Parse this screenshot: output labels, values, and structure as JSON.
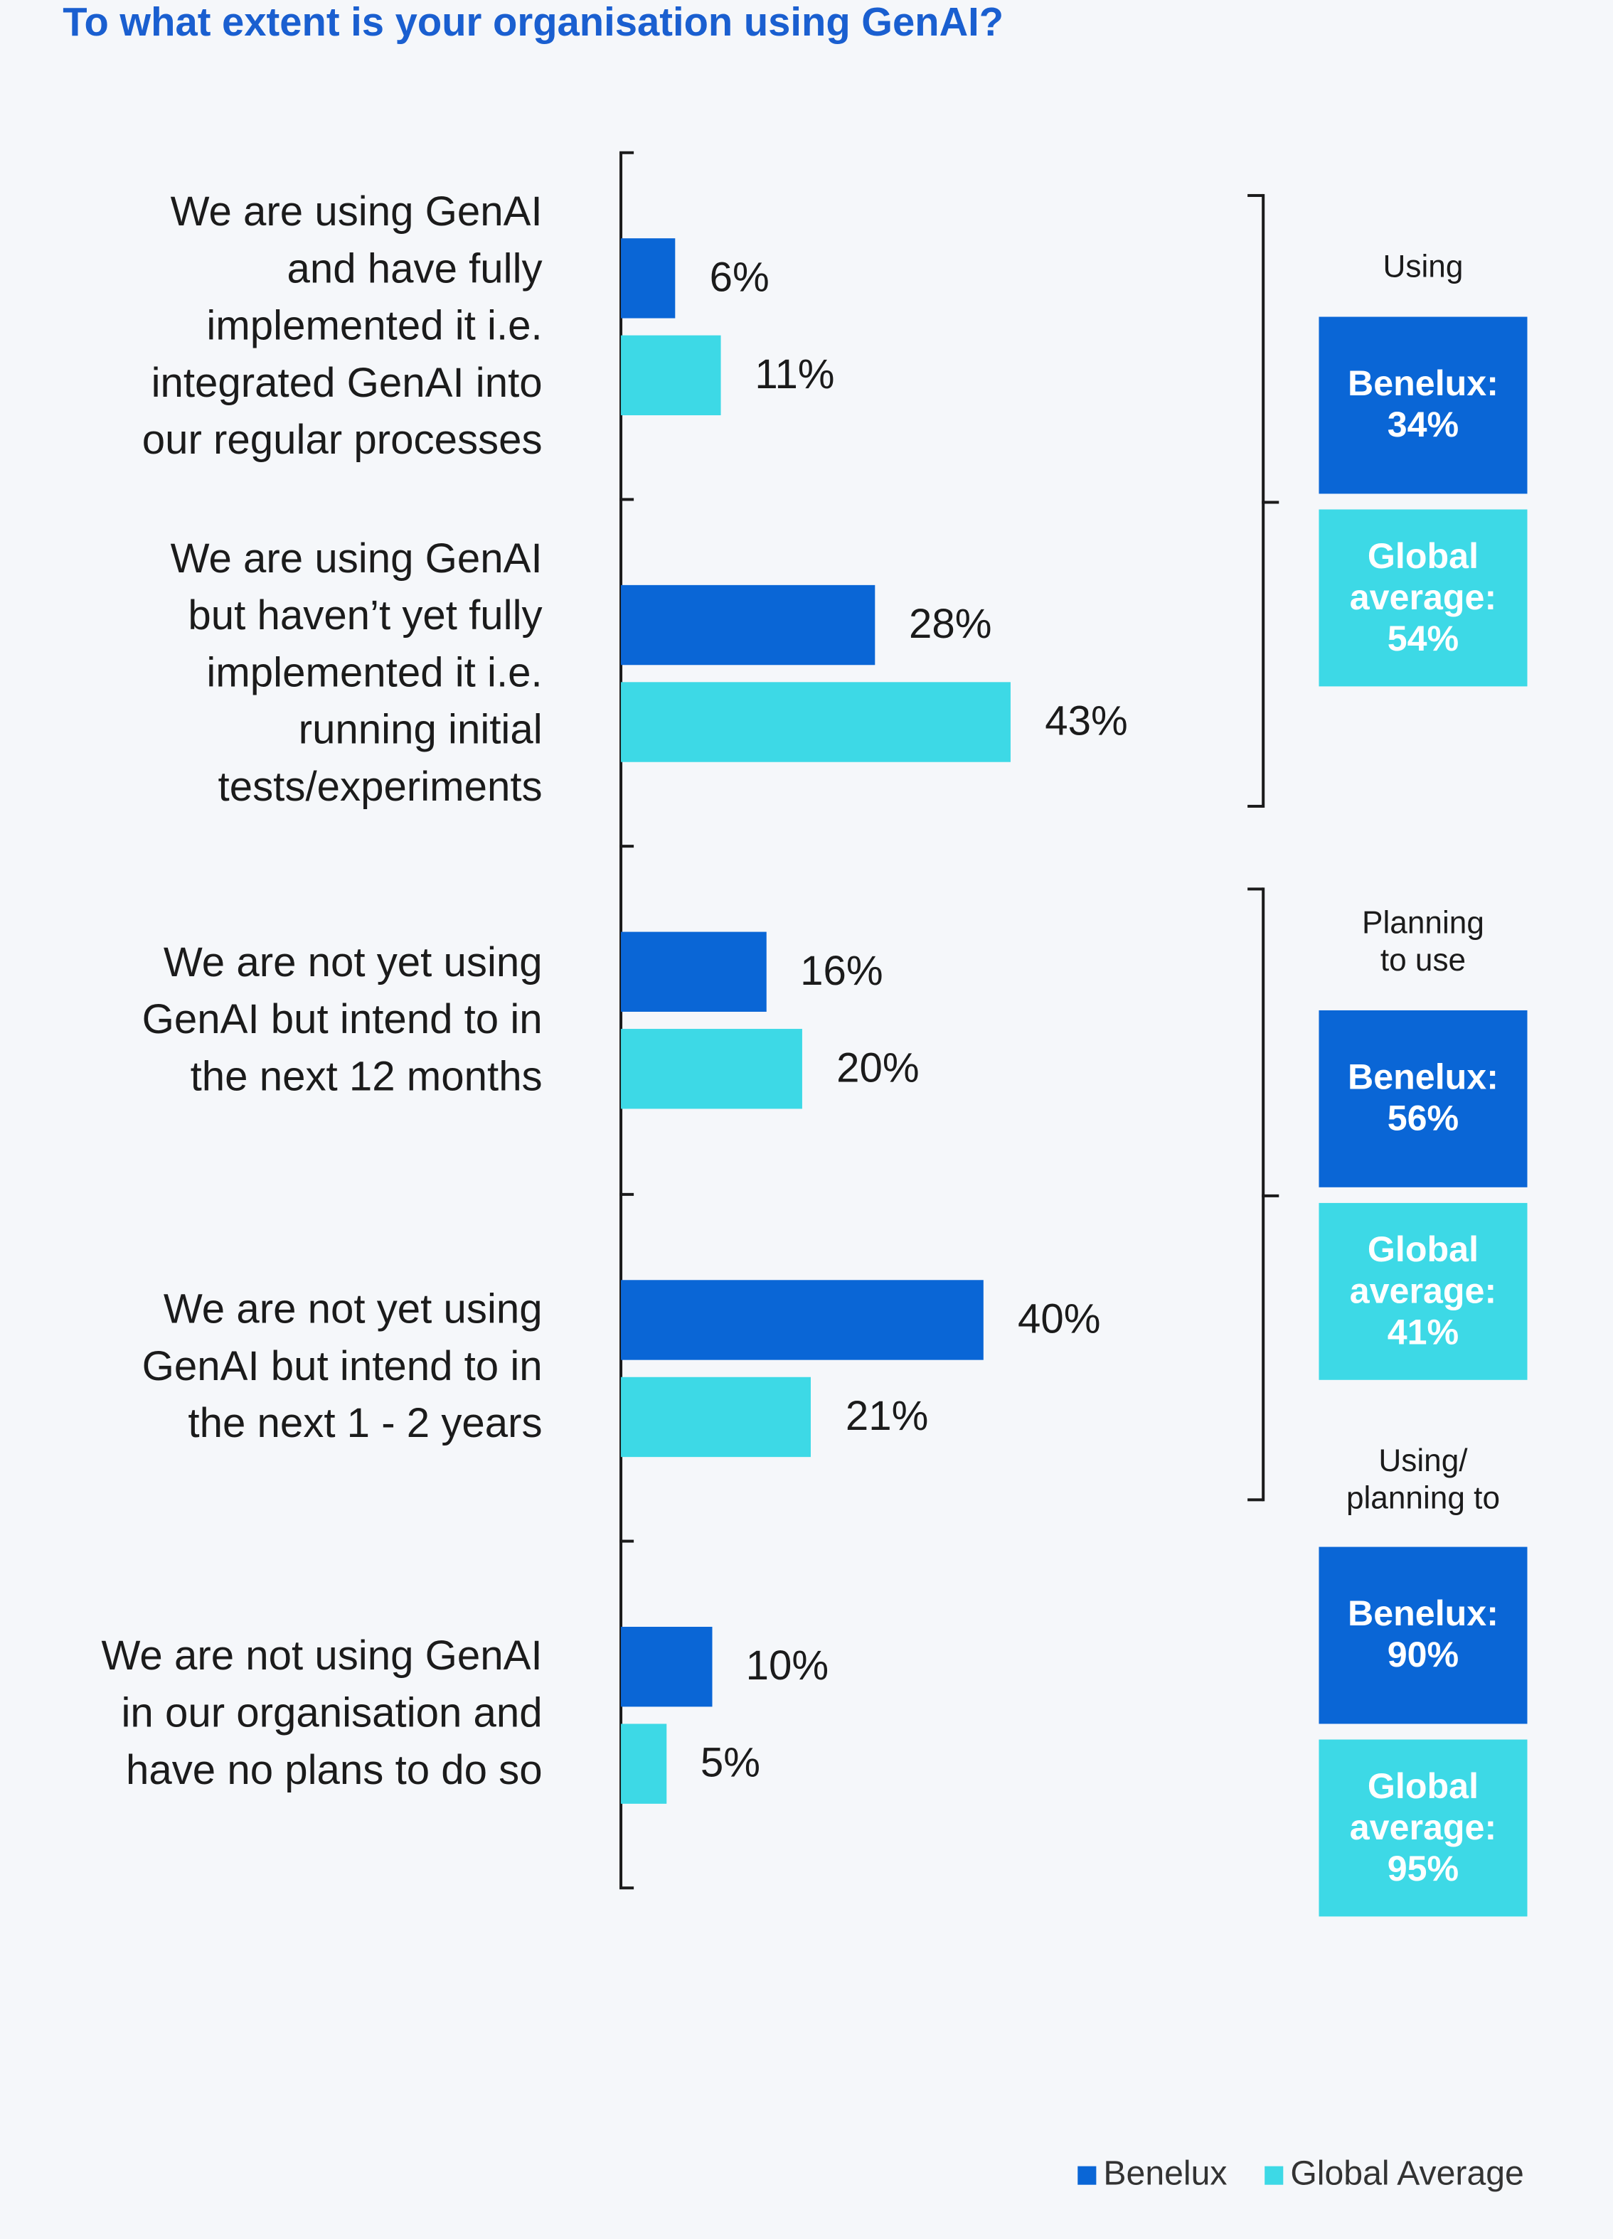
{
  "chart_data": {
    "type": "bar",
    "orientation": "horizontal",
    "title": "To what extent is your organisation using GenAI?",
    "categories": [
      "We are using GenAI\nand have fully\nimplemented it i.e.\nintegrated GenAI into\nour regular processes",
      "We are using GenAI\nbut haven’t yet fully\nimplemented it i.e.\nrunning initial\ntests/experiments",
      "We are not yet using\nGenAI but intend to in\nthe next 12 months",
      "We are not yet using\nGenAI but intend to in\nthe next 1 - 2 years",
      "We are not using GenAI\nin our organisation and\nhave no plans to do so"
    ],
    "series": [
      {
        "name": "Benelux",
        "color": "#0a66d6",
        "values": [
          6,
          28,
          16,
          40,
          10
        ],
        "value_labels": [
          "6%",
          "28%",
          "16%",
          "40%",
          "10%"
        ]
      },
      {
        "name": "Global Average",
        "color": "#3dd9e6",
        "values": [
          11,
          43,
          20,
          21,
          5
        ],
        "value_labels": [
          "11%",
          "43%",
          "20%",
          "21%",
          "5%"
        ]
      }
    ],
    "summaries": [
      {
        "title": "Using",
        "boxes": [
          {
            "name": "Benelux:",
            "value_label": "34%"
          },
          {
            "name": "Global\naverage:",
            "value_label": "54%"
          }
        ]
      },
      {
        "title": "Planning\nto use",
        "boxes": [
          {
            "name": "Benelux:",
            "value_label": "56%"
          },
          {
            "name": "Global\naverage:",
            "value_label": "41%"
          }
        ]
      },
      {
        "title": "Using/\nplanning to",
        "boxes": [
          {
            "name": "Benelux:",
            "value_label": "90%"
          },
          {
            "name": "Global\naverage:",
            "value_label": "95%"
          }
        ]
      }
    ],
    "legend": "bottom-right"
  }
}
